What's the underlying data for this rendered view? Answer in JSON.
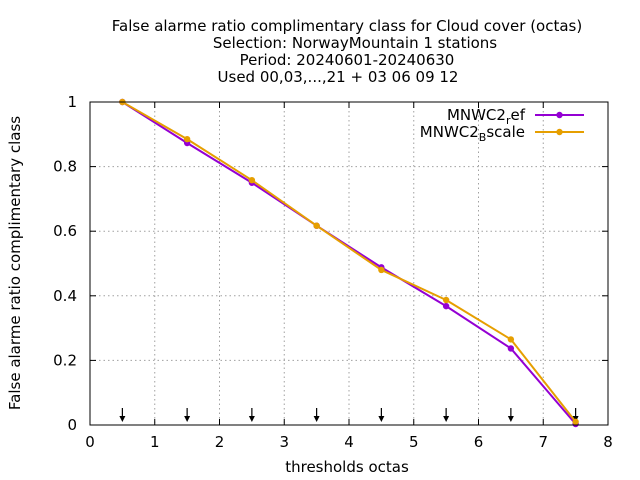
{
  "chart_data": {
    "type": "line",
    "title_lines": [
      "False alarme ratio complimentary class  for Cloud cover (octas)",
      "Selection: NorwayMountain      1 stations",
      "Period: 20240601-20240630",
      "Used 00,03,...,21 + 03 06 09 12"
    ],
    "xlabel": "thresholds octas",
    "ylabel": "False alarme ratio complimentary class",
    "xlim": [
      0,
      8
    ],
    "ylim": [
      0,
      1
    ],
    "xticks": [
      0,
      1,
      2,
      3,
      4,
      5,
      6,
      7,
      8
    ],
    "yticks": [
      0,
      0.2,
      0.4,
      0.6,
      0.8,
      1
    ],
    "ytick_labels": [
      "0",
      "0.2",
      "0.4",
      "0.6",
      "0.8",
      "1"
    ],
    "grid": true,
    "legend_position": "top-right",
    "series": [
      {
        "name_base": "MNWC2",
        "name_sub": "r",
        "name_rest": "ef",
        "color": "#9400d3",
        "x": [
          0.5,
          1.5,
          2.5,
          3.5,
          4.5,
          5.5,
          6.5,
          7.5
        ],
        "values": [
          1.0,
          0.873,
          0.75,
          0.617,
          0.488,
          0.368,
          0.237,
          0.003
        ]
      },
      {
        "name_base": "MNWC2",
        "name_sub": "B",
        "name_rest": "scale",
        "color": "#e69f00",
        "x": [
          0.5,
          1.5,
          2.5,
          3.5,
          4.5,
          5.5,
          6.5,
          7.5
        ],
        "values": [
          1.0,
          0.885,
          0.758,
          0.617,
          0.48,
          0.387,
          0.265,
          0.01
        ]
      }
    ],
    "arrows_x": [
      0.5,
      1.5,
      2.5,
      3.5,
      4.5,
      5.5,
      6.5,
      7.5
    ]
  }
}
